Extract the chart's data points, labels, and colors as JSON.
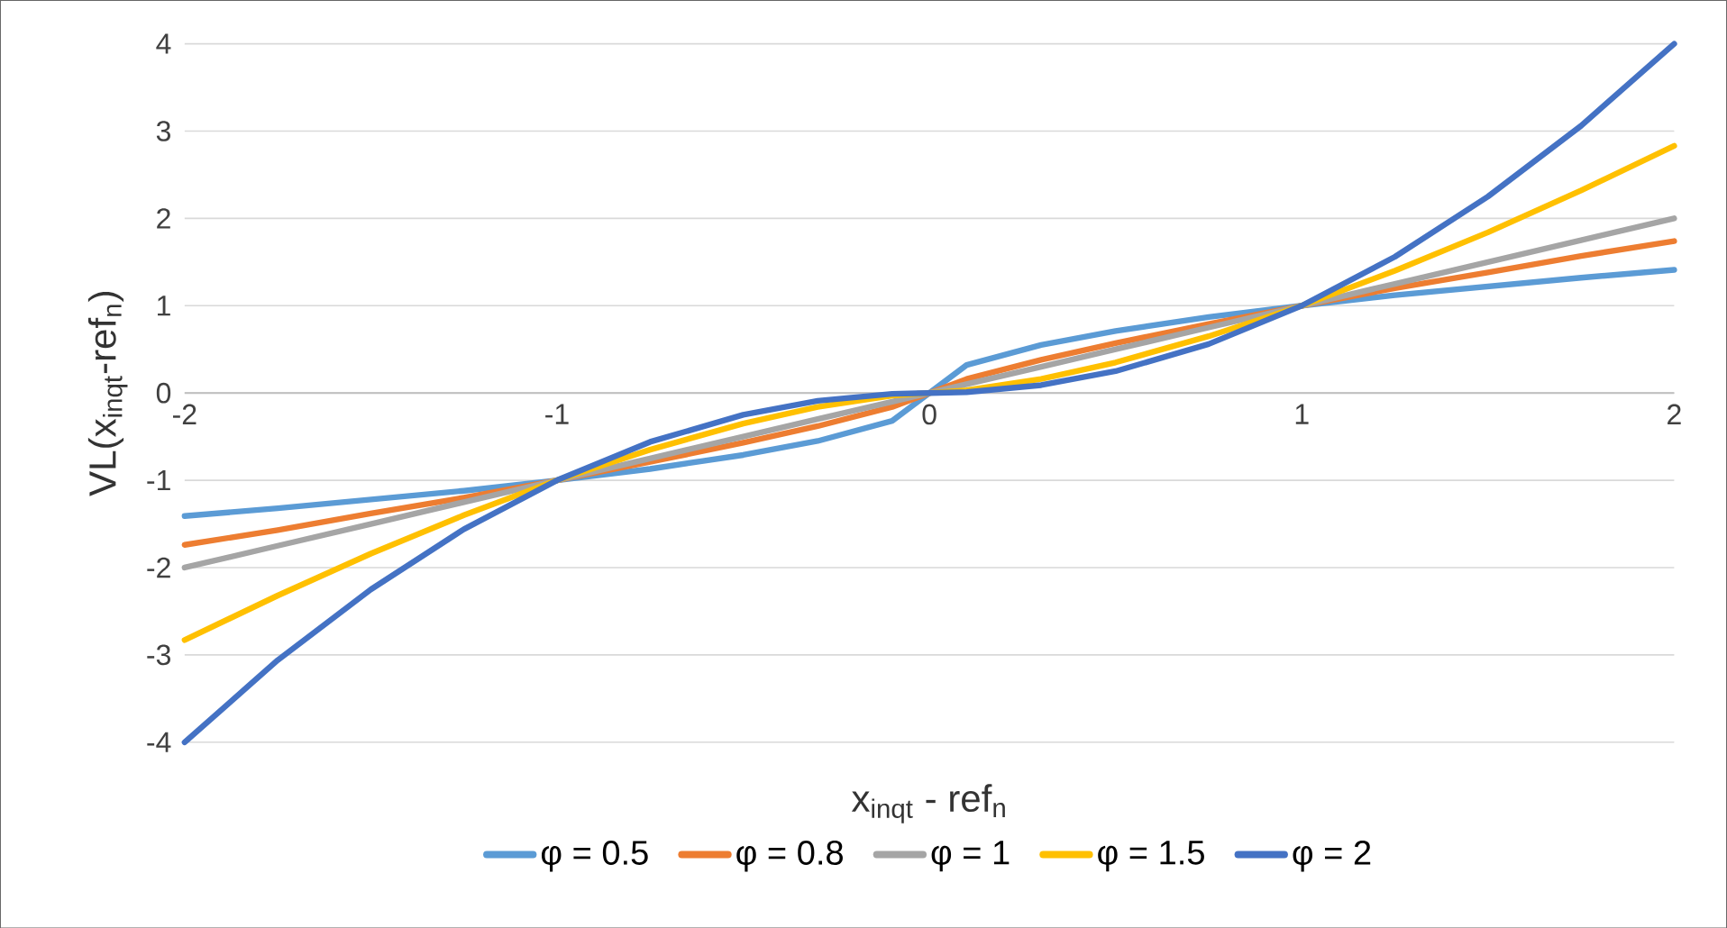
{
  "chart_data": {
    "type": "line",
    "xlabel": "x$_{inqt}$ - ref$_{n}$",
    "ylabel": "VL(x$_{inqt}$-ref$_{n}$)",
    "x": [
      -2,
      -1.75,
      -1.5,
      -1.25,
      -1,
      -0.75,
      -0.5,
      -0.3,
      -0.1,
      0,
      0.1,
      0.3,
      0.5,
      0.75,
      1,
      1.25,
      1.5,
      1.75,
      2
    ],
    "series": [
      {
        "name": "φ = 0.5",
        "color": "#5b9bd5",
        "values": [
          -1.41,
          -1.32,
          -1.22,
          -1.12,
          -1,
          -0.87,
          -0.71,
          -0.55,
          -0.32,
          0,
          0.32,
          0.55,
          0.71,
          0.87,
          1,
          1.12,
          1.22,
          1.32,
          1.41
        ]
      },
      {
        "name": "φ = 0.8",
        "color": "#ed7d31",
        "values": [
          -1.74,
          -1.57,
          -1.38,
          -1.2,
          -1,
          -0.79,
          -0.57,
          -0.38,
          -0.16,
          0,
          0.16,
          0.38,
          0.57,
          0.79,
          1,
          1.2,
          1.38,
          1.57,
          1.74
        ]
      },
      {
        "name": "φ = 1",
        "color": "#a5a5a5",
        "values": [
          -2,
          -1.75,
          -1.5,
          -1.25,
          -1,
          -0.75,
          -0.5,
          -0.3,
          -0.1,
          0,
          0.1,
          0.3,
          0.5,
          0.75,
          1,
          1.25,
          1.5,
          1.75,
          2
        ]
      },
      {
        "name": "φ = 1.5",
        "color": "#ffc000",
        "values": [
          -2.83,
          -2.32,
          -1.84,
          -1.4,
          -1,
          -0.65,
          -0.35,
          -0.16,
          -0.03,
          0,
          0.03,
          0.16,
          0.35,
          0.65,
          1,
          1.4,
          1.84,
          2.32,
          2.83
        ]
      },
      {
        "name": "φ = 2",
        "color": "#4472c4",
        "values": [
          -4,
          -3.06,
          -2.25,
          -1.56,
          -1,
          -0.56,
          -0.25,
          -0.09,
          -0.01,
          0,
          0.01,
          0.09,
          0.25,
          0.56,
          1,
          1.56,
          2.25,
          3.06,
          4
        ]
      }
    ],
    "xlim": [
      -2,
      2
    ],
    "ylim": [
      -4,
      4
    ],
    "xticks": [
      -2,
      -1,
      0,
      1,
      2
    ],
    "yticks": [
      -4,
      -3,
      -2,
      -1,
      0,
      1,
      2,
      3,
      4
    ],
    "grid": "y",
    "legend": "bottom",
    "marker": "none",
    "line_style": "solid"
  }
}
